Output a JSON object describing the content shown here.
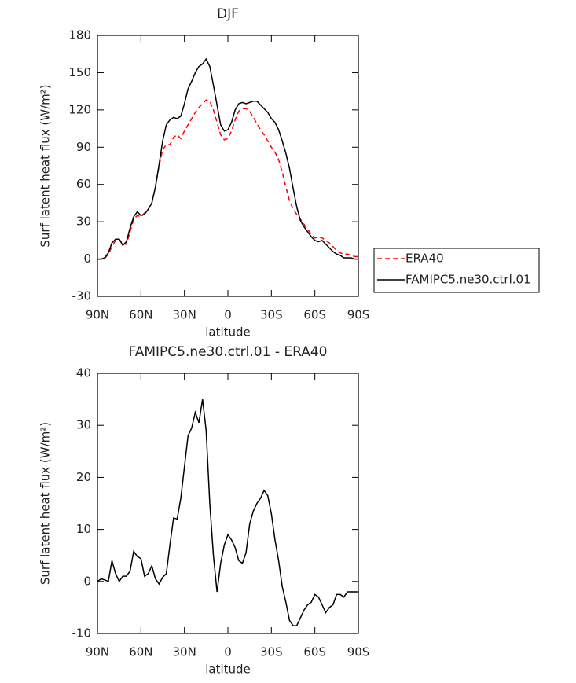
{
  "chart_data": [
    {
      "type": "line",
      "title": "DJF",
      "x_label": "latitude",
      "y_label": "Surf latent heat flux (W/m²)",
      "x": [
        90,
        87.5,
        85,
        82.5,
        80,
        77.5,
        75,
        72.5,
        70,
        67.5,
        65,
        62.5,
        60,
        57.5,
        55,
        52.5,
        50,
        47.5,
        45,
        42.5,
        40,
        37.5,
        35,
        32.5,
        30,
        27.5,
        25,
        22.5,
        20,
        17.5,
        15,
        12.5,
        10,
        7.5,
        5,
        2.5,
        0,
        -2.5,
        -5,
        -7.5,
        -10,
        -12.5,
        -15,
        -17.5,
        -20,
        -22.5,
        -25,
        -27.5,
        -30,
        -32.5,
        -35,
        -37.5,
        -40,
        -42.5,
        -45,
        -47.5,
        -50,
        -52.5,
        -55,
        -57.5,
        -60,
        -62.5,
        -65,
        -67.5,
        -70,
        -72.5,
        -75,
        -77.5,
        -80,
        -82.5,
        -85,
        -87.5,
        -90
      ],
      "series": [
        {
          "name": "ERA40",
          "color": "#ff0000",
          "linestyle": "dashed",
          "values": [
            0,
            0,
            0.5,
            4,
            10,
            15,
            16,
            12,
            12,
            22,
            32,
            35,
            34,
            37,
            40,
            45,
            58,
            75,
            88,
            92,
            92,
            98,
            100,
            97,
            103,
            108,
            113,
            118,
            122,
            125,
            128,
            127,
            120,
            110,
            100,
            96,
            97,
            103,
            112,
            119,
            121,
            121,
            119,
            114,
            109,
            104,
            100,
            95,
            90,
            86,
            80,
            70,
            58,
            47,
            40,
            36,
            32,
            28,
            24,
            20,
            17,
            18,
            17,
            15,
            13,
            10,
            7,
            5,
            4,
            4,
            3,
            2,
            2
          ]
        },
        {
          "name": "FAMIPC5.ne30.ctrl.01",
          "color": "#000000",
          "linestyle": "solid",
          "values": [
            0,
            0,
            1,
            5,
            13,
            16,
            16,
            11,
            14,
            25,
            34,
            38,
            35,
            36,
            40,
            45,
            58,
            76,
            95,
            108,
            112,
            114,
            113,
            115,
            125,
            137,
            143,
            150,
            155,
            157,
            161,
            155,
            140,
            124,
            108,
            103,
            104,
            110,
            120,
            125,
            126,
            125,
            126,
            127,
            127,
            124,
            121,
            118,
            113,
            110,
            104,
            95,
            85,
            73,
            57,
            42,
            31,
            26,
            22,
            18,
            15,
            14,
            15,
            12,
            9,
            6,
            4,
            3,
            1,
            1,
            1,
            0,
            0
          ]
        }
      ],
      "xlim": [
        90,
        -90
      ],
      "xticks": [
        {
          "value": 90,
          "label": "90N"
        },
        {
          "value": 60,
          "label": "60N"
        },
        {
          "value": 30,
          "label": "30N"
        },
        0,
        {
          "value": -30,
          "label": "30S"
        },
        {
          "value": -60,
          "label": "60S"
        },
        {
          "value": -90,
          "label": "90S"
        }
      ],
      "ylim": [
        -30,
        180
      ],
      "yticks": [
        -30,
        0,
        30,
        60,
        90,
        120,
        150,
        180
      ],
      "legend": "right"
    },
    {
      "type": "line",
      "title": "FAMIPC5.ne30.ctrl.01 - ERA40",
      "x_label": "latitude",
      "y_label": "Surf latent heat flux (W/m²)",
      "x": [
        90,
        87.5,
        85,
        82.5,
        80,
        77.5,
        75,
        72.5,
        70,
        67.5,
        65,
        62.5,
        60,
        57.5,
        55,
        52.5,
        50,
        47.5,
        45,
        42.5,
        40,
        37.5,
        35,
        32.5,
        30,
        27.5,
        25,
        22.5,
        20,
        17.5,
        15,
        12.5,
        10,
        7.5,
        5,
        2.5,
        0,
        -2.5,
        -5,
        -7.5,
        -10,
        -12.5,
        -15,
        -17.5,
        -20,
        -22.5,
        -25,
        -27.5,
        -30,
        -32.5,
        -35,
        -37.5,
        -40,
        -42.5,
        -45,
        -47.5,
        -50,
        -52.5,
        -55,
        -57.5,
        -60,
        -62.5,
        -65,
        -67.5,
        -70,
        -72.5,
        -75,
        -77.5,
        -80,
        -82.5,
        -85,
        -87.5,
        -90
      ],
      "series": [
        {
          "color": "#000000",
          "linestyle": "solid",
          "values": [
            0,
            0.5,
            0.3,
            0,
            4,
            1.5,
            0,
            1,
            1,
            2,
            5.8,
            4.8,
            4.4,
            1,
            1.5,
            3,
            0.5,
            -0.5,
            0.8,
            1.5,
            7,
            12.2,
            12,
            16,
            22,
            28,
            29.5,
            32.5,
            30.5,
            35,
            29,
            15,
            5,
            -2,
            3.5,
            7,
            9,
            8,
            6.5,
            4,
            3.5,
            5.5,
            11,
            13.5,
            15,
            16,
            17.5,
            16.5,
            13,
            8,
            4,
            -1,
            -4,
            -7.5,
            -8.5,
            -8.5,
            -7,
            -5.5,
            -4.5,
            -4,
            -2.5,
            -3,
            -4.5,
            -6,
            -5,
            -4.5,
            -2.5,
            -2.5,
            -3,
            -2,
            -2,
            -2,
            -2
          ]
        }
      ],
      "xlim": [
        90,
        -90
      ],
      "xticks": [
        {
          "value": 90,
          "label": "90N"
        },
        {
          "value": 60,
          "label": "60N"
        },
        {
          "value": 30,
          "label": "30N"
        },
        0,
        {
          "value": -30,
          "label": "30S"
        },
        {
          "value": -60,
          "label": "60S"
        },
        {
          "value": -90,
          "label": "90S"
        }
      ],
      "ylim": [
        -10,
        40
      ],
      "yticks": [
        -10,
        0,
        10,
        20,
        30,
        40
      ]
    }
  ]
}
